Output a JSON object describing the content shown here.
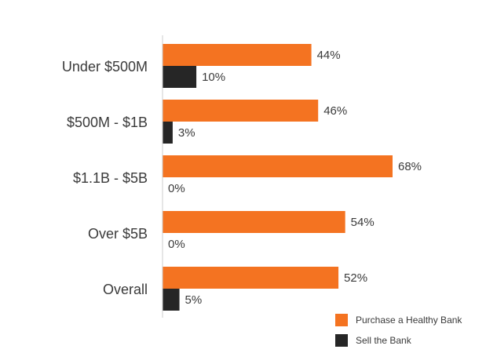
{
  "chart_data": {
    "type": "bar",
    "orientation": "horizontal",
    "categories": [
      "Under $500M",
      "$500M - $1B",
      "$1.1B - $5B",
      "Over $5B",
      "Overall"
    ],
    "series": [
      {
        "name": "Purchase a Healthy Bank",
        "color": "#f47321",
        "values": [
          44,
          46,
          68,
          54,
          52
        ],
        "labels": [
          "44%",
          "46%",
          "68%",
          "54%",
          "52%"
        ]
      },
      {
        "name": "Sell the Bank",
        "color": "#262626",
        "values": [
          10,
          3,
          0,
          0,
          5
        ],
        "labels": [
          "10%",
          "3%",
          "0%",
          "0%",
          "5%"
        ]
      }
    ],
    "xlim": [
      0,
      100
    ],
    "grid": false,
    "legend": "bottom-right"
  }
}
